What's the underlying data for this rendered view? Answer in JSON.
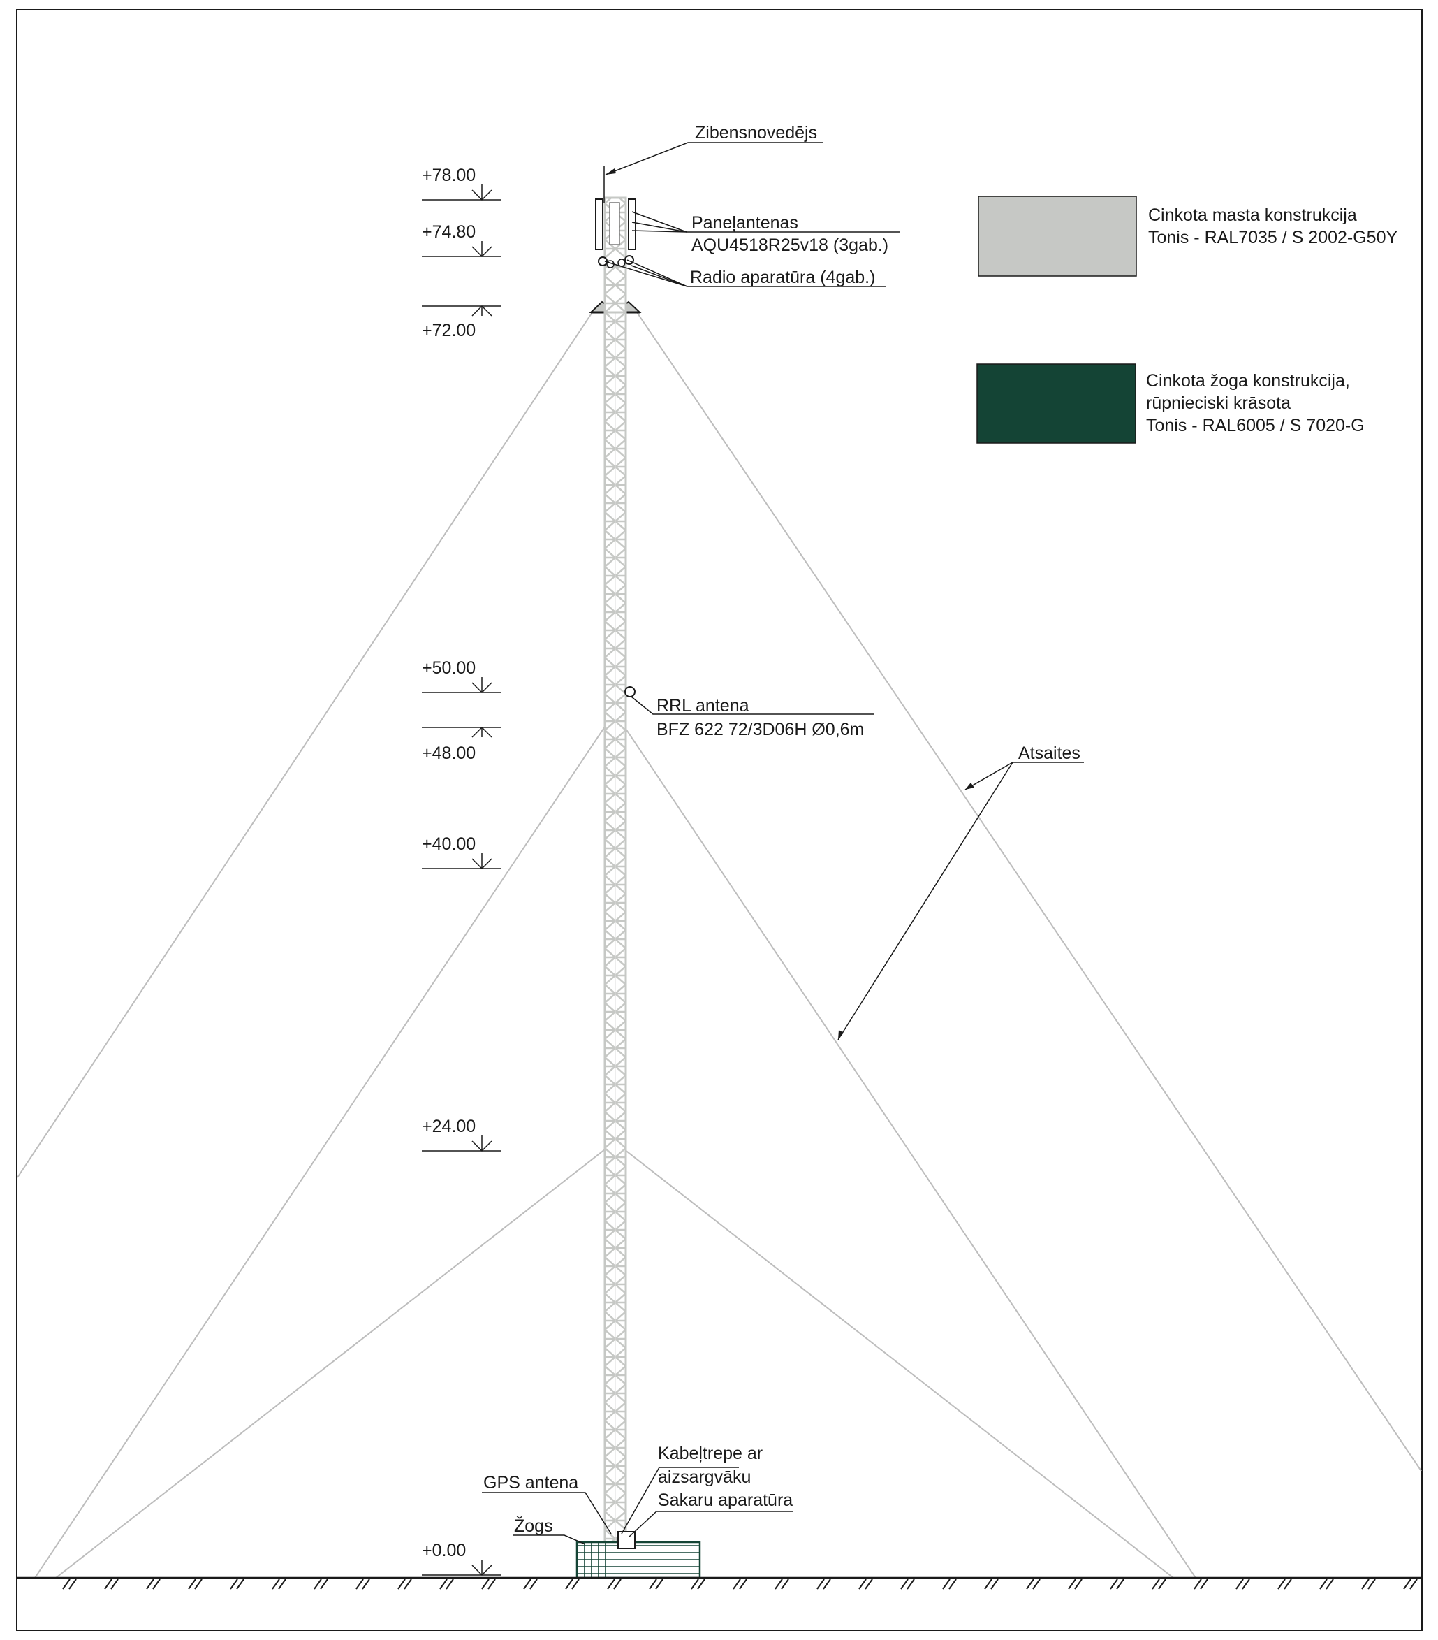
{
  "colors": {
    "mast": "#c6c8c5",
    "fence": "#144435",
    "stroke": "#1a1a1a",
    "guy": "#bdbdbd"
  },
  "levels": [
    {
      "label": "+78.00"
    },
    {
      "label": "+74.80"
    },
    {
      "label": "+72.00"
    },
    {
      "label": "+50.00"
    },
    {
      "label": "+48.00"
    },
    {
      "label": "+40.00"
    },
    {
      "label": "+24.00"
    },
    {
      "label": "+0.00"
    }
  ],
  "callouts": {
    "lightning_rod": "Zibensnovedējs",
    "panel_antennas_1": "Paneļantenas",
    "panel_antennas_2": "AQU4518R25v18 (3gab.)",
    "radio_units": "Radio aparatūra (4gab.)",
    "rrl_antenna_1": "RRL antena",
    "rrl_antenna_2": "BFZ 622 72/3D06H Ø0,6m",
    "guy_wires": "Atsaites",
    "cable_tray_1": "Kabeļtrepe ar",
    "cable_tray_2": "aizsargvāku",
    "comm_equipment": "Sakaru aparatūra",
    "gps_antenna": "GPS antena",
    "fence": "Žogs"
  },
  "legend": [
    {
      "lines": [
        "Cinkota masta konstrukcija",
        "Tonis - RAL7035 / S 2002-G50Y"
      ],
      "color_key": "mast"
    },
    {
      "lines": [
        "Cinkota žoga konstrukcija,",
        "rūpnieciski krāsota",
        "Tonis - RAL6005 / S 7020-G"
      ],
      "color_key": "fence"
    }
  ]
}
